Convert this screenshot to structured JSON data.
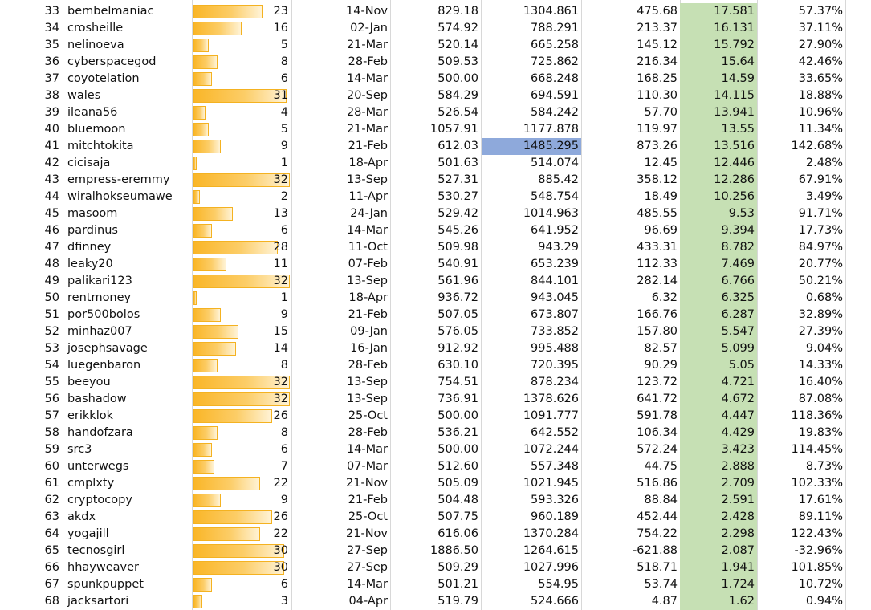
{
  "colors": {
    "ratio_column_fill": "#c6e0b4",
    "databar_fill": "#fab628",
    "databar_border": "#f4b221",
    "selected_cell_fill": "#8ea9db",
    "gridline": "#d8d8d8"
  },
  "databar_max": 32,
  "rows": [
    {
      "rank": "33",
      "name": "bembelmaniac",
      "count": "23",
      "date": "14-Nov",
      "v1": "829.18",
      "v2": "1304.861",
      "diff": "475.68",
      "ratio": "17.581",
      "pct": "57.37%"
    },
    {
      "rank": "34",
      "name": "crosheille",
      "count": "16",
      "date": "02-Jan",
      "v1": "574.92",
      "v2": "788.291",
      "diff": "213.37",
      "ratio": "16.131",
      "pct": "37.11%"
    },
    {
      "rank": "35",
      "name": "nelinoeva",
      "count": "5",
      "date": "21-Mar",
      "v1": "520.14",
      "v2": "665.258",
      "diff": "145.12",
      "ratio": "15.792",
      "pct": "27.90%"
    },
    {
      "rank": "36",
      "name": "cyberspacegod",
      "count": "8",
      "date": "28-Feb",
      "v1": "509.53",
      "v2": "725.862",
      "diff": "216.34",
      "ratio": "15.64",
      "pct": "42.46%"
    },
    {
      "rank": "37",
      "name": "coyotelation",
      "count": "6",
      "date": "14-Mar",
      "v1": "500.00",
      "v2": "668.248",
      "diff": "168.25",
      "ratio": "14.59",
      "pct": "33.65%"
    },
    {
      "rank": "38",
      "name": "wales",
      "count": "31",
      "date": "20-Sep",
      "v1": "584.29",
      "v2": "694.591",
      "diff": "110.30",
      "ratio": "14.115",
      "pct": "18.88%"
    },
    {
      "rank": "39",
      "name": "ileana56",
      "count": "4",
      "date": "28-Mar",
      "v1": "526.54",
      "v2": "584.242",
      "diff": "57.70",
      "ratio": "13.941",
      "pct": "10.96%"
    },
    {
      "rank": "40",
      "name": "bluemoon",
      "count": "5",
      "date": "21-Mar",
      "v1": "1057.91",
      "v2": "1177.878",
      "diff": "119.97",
      "ratio": "13.55",
      "pct": "11.34%"
    },
    {
      "rank": "41",
      "name": "mitchtokita",
      "count": "9",
      "date": "21-Feb",
      "v1": "612.03",
      "v2": "1485.295",
      "diff": "873.26",
      "ratio": "13.516",
      "pct": "142.68%",
      "selected": true
    },
    {
      "rank": "42",
      "name": "cicisaja",
      "count": "1",
      "date": "18-Apr",
      "v1": "501.63",
      "v2": "514.074",
      "diff": "12.45",
      "ratio": "12.446",
      "pct": "2.48%"
    },
    {
      "rank": "43",
      "name": "empress-eremmy",
      "count": "32",
      "date": "13-Sep",
      "v1": "527.31",
      "v2": "885.42",
      "diff": "358.12",
      "ratio": "12.286",
      "pct": "67.91%"
    },
    {
      "rank": "44",
      "name": "wiralhokseumawe",
      "count": "2",
      "date": "11-Apr",
      "v1": "530.27",
      "v2": "548.754",
      "diff": "18.49",
      "ratio": "10.256",
      "pct": "3.49%"
    },
    {
      "rank": "45",
      "name": "masoom",
      "count": "13",
      "date": "24-Jan",
      "v1": "529.42",
      "v2": "1014.963",
      "diff": "485.55",
      "ratio": "9.53",
      "pct": "91.71%"
    },
    {
      "rank": "46",
      "name": "pardinus",
      "count": "6",
      "date": "14-Mar",
      "v1": "545.26",
      "v2": "641.952",
      "diff": "96.69",
      "ratio": "9.394",
      "pct": "17.73%"
    },
    {
      "rank": "47",
      "name": "dfinney",
      "count": "28",
      "date": "11-Oct",
      "v1": "509.98",
      "v2": "943.29",
      "diff": "433.31",
      "ratio": "8.782",
      "pct": "84.97%"
    },
    {
      "rank": "48",
      "name": "leaky20",
      "count": "11",
      "date": "07-Feb",
      "v1": "540.91",
      "v2": "653.239",
      "diff": "112.33",
      "ratio": "7.469",
      "pct": "20.77%"
    },
    {
      "rank": "49",
      "name": "palikari123",
      "count": "32",
      "date": "13-Sep",
      "v1": "561.96",
      "v2": "844.101",
      "diff": "282.14",
      "ratio": "6.766",
      "pct": "50.21%"
    },
    {
      "rank": "50",
      "name": "rentmoney",
      "count": "1",
      "date": "18-Apr",
      "v1": "936.72",
      "v2": "943.045",
      "diff": "6.32",
      "ratio": "6.325",
      "pct": "0.68%"
    },
    {
      "rank": "51",
      "name": "por500bolos",
      "count": "9",
      "date": "21-Feb",
      "v1": "507.05",
      "v2": "673.807",
      "diff": "166.76",
      "ratio": "6.287",
      "pct": "32.89%"
    },
    {
      "rank": "52",
      "name": "minhaz007",
      "count": "15",
      "date": "09-Jan",
      "v1": "576.05",
      "v2": "733.852",
      "diff": "157.80",
      "ratio": "5.547",
      "pct": "27.39%"
    },
    {
      "rank": "53",
      "name": "josephsavage",
      "count": "14",
      "date": "16-Jan",
      "v1": "912.92",
      "v2": "995.488",
      "diff": "82.57",
      "ratio": "5.099",
      "pct": "9.04%"
    },
    {
      "rank": "54",
      "name": "luegenbaron",
      "count": "8",
      "date": "28-Feb",
      "v1": "630.10",
      "v2": "720.395",
      "diff": "90.29",
      "ratio": "5.05",
      "pct": "14.33%"
    },
    {
      "rank": "55",
      "name": "beeyou",
      "count": "32",
      "date": "13-Sep",
      "v1": "754.51",
      "v2": "878.234",
      "diff": "123.72",
      "ratio": "4.721",
      "pct": "16.40%"
    },
    {
      "rank": "56",
      "name": "bashadow",
      "count": "32",
      "date": "13-Sep",
      "v1": "736.91",
      "v2": "1378.626",
      "diff": "641.72",
      "ratio": "4.672",
      "pct": "87.08%"
    },
    {
      "rank": "57",
      "name": "erikklok",
      "count": "26",
      "date": "25-Oct",
      "v1": "500.00",
      "v2": "1091.777",
      "diff": "591.78",
      "ratio": "4.447",
      "pct": "118.36%"
    },
    {
      "rank": "58",
      "name": "handofzara",
      "count": "8",
      "date": "28-Feb",
      "v1": "536.21",
      "v2": "642.552",
      "diff": "106.34",
      "ratio": "4.429",
      "pct": "19.83%"
    },
    {
      "rank": "59",
      "name": "src3",
      "count": "6",
      "date": "14-Mar",
      "v1": "500.00",
      "v2": "1072.244",
      "diff": "572.24",
      "ratio": "3.423",
      "pct": "114.45%"
    },
    {
      "rank": "60",
      "name": "unterwegs",
      "count": "7",
      "date": "07-Mar",
      "v1": "512.60",
      "v2": "557.348",
      "diff": "44.75",
      "ratio": "2.888",
      "pct": "8.73%"
    },
    {
      "rank": "61",
      "name": "cmplxty",
      "count": "22",
      "date": "21-Nov",
      "v1": "505.09",
      "v2": "1021.945",
      "diff": "516.86",
      "ratio": "2.709",
      "pct": "102.33%"
    },
    {
      "rank": "62",
      "name": "cryptocopy",
      "count": "9",
      "date": "21-Feb",
      "v1": "504.48",
      "v2": "593.326",
      "diff": "88.84",
      "ratio": "2.591",
      "pct": "17.61%"
    },
    {
      "rank": "63",
      "name": "akdx",
      "count": "26",
      "date": "25-Oct",
      "v1": "507.75",
      "v2": "960.189",
      "diff": "452.44",
      "ratio": "2.428",
      "pct": "89.11%"
    },
    {
      "rank": "64",
      "name": "yogajill",
      "count": "22",
      "date": "21-Nov",
      "v1": "616.06",
      "v2": "1370.284",
      "diff": "754.22",
      "ratio": "2.298",
      "pct": "122.43%"
    },
    {
      "rank": "65",
      "name": "tecnosgirl",
      "count": "30",
      "date": "27-Sep",
      "v1": "1886.50",
      "v2": "1264.615",
      "diff": "-621.88",
      "ratio": "2.087",
      "pct": "-32.96%"
    },
    {
      "rank": "66",
      "name": "hhayweaver",
      "count": "30",
      "date": "27-Sep",
      "v1": "509.29",
      "v2": "1027.996",
      "diff": "518.71",
      "ratio": "1.941",
      "pct": "101.85%"
    },
    {
      "rank": "67",
      "name": "spunkpuppet",
      "count": "6",
      "date": "14-Mar",
      "v1": "501.21",
      "v2": "554.95",
      "diff": "53.74",
      "ratio": "1.724",
      "pct": "10.72%"
    },
    {
      "rank": "68",
      "name": "jacksartori",
      "count": "3",
      "date": "04-Apr",
      "v1": "519.79",
      "v2": "524.666",
      "diff": "4.87",
      "ratio": "1.62",
      "pct": "0.94%"
    }
  ]
}
